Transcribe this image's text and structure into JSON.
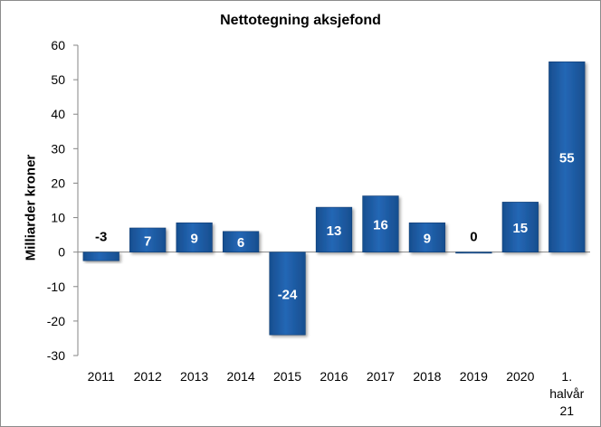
{
  "chart_data": {
    "type": "bar",
    "title": "Nettotegning aksjefond",
    "ylabel": "Milliarder kroner",
    "xlabel": "",
    "categories": [
      "2011",
      "2012",
      "2013",
      "2014",
      "2015",
      "2016",
      "2017",
      "2018",
      "2019",
      "2020",
      "1.\nhalvår\n21"
    ],
    "values": [
      -3,
      7,
      9,
      6,
      -24,
      13,
      16,
      9,
      0,
      15,
      55
    ],
    "data_labels": [
      "-3",
      "7",
      "9",
      "6",
      "-24",
      "13",
      "16",
      "9",
      "0",
      "15",
      "55"
    ],
    "plotted_values": [
      -2.5,
      7,
      8.5,
      6,
      -24,
      13,
      16.3,
      8.5,
      -0.3,
      14.5,
      55.2
    ],
    "ylim": [
      -30,
      60
    ],
    "yticks": [
      "-30",
      "-20",
      "-10",
      "0",
      "10",
      "20",
      "30",
      "40",
      "50",
      "60"
    ],
    "grid": false,
    "legend": "none",
    "bar_color": "#1f5ea8",
    "label_color_inside": "#ffffff",
    "label_color_outside": "#000000"
  }
}
